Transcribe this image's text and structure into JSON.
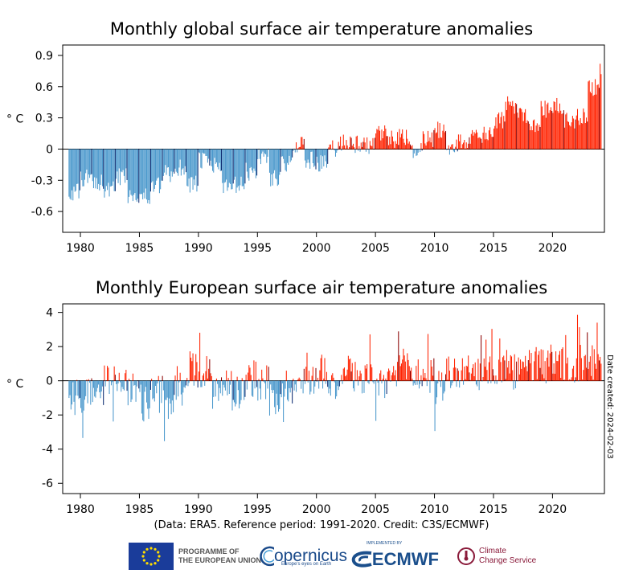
{
  "credit": "(Data: ERA5.  Reference period: 1991-2020.  Credit: C3S/ECMWF)",
  "date_created": "Date created: 2024-02-03",
  "logos": {
    "eu": [
      "PROGRAMME OF",
      "THE EUROPEAN UNION"
    ],
    "copernicus": "opernicus",
    "copernicus_tagline": "Europe's eyes on Earth",
    "ecmwf": "ECMWF",
    "ecmwf_tagline": "IMPLEMENTED BY",
    "c3s": [
      "Climate",
      "Change Service"
    ]
  },
  "colors": {
    "positive": "#ff2200",
    "negative": "#4a98cc",
    "december_negative": "#0c2a70",
    "december_positive": "#8b0000"
  },
  "chart_data": [
    {
      "type": "bar",
      "title": "Monthly global surface air temperature anomalies",
      "ylabel": "° C",
      "ylim": [
        -0.8,
        1.0
      ],
      "yticks": [
        -0.6,
        -0.3,
        0,
        0.3,
        0.6,
        0.9
      ],
      "ytick_labels": [
        "-0.6",
        "-0.3",
        "0",
        "0.3",
        "0.6",
        "0.9"
      ],
      "xlim": [
        1978.5,
        2024.4
      ],
      "xticks": [
        1980,
        1985,
        1990,
        1995,
        2000,
        2005,
        2010,
        2015,
        2020
      ],
      "start": "1979-01",
      "annual_means": [
        -0.42,
        -0.28,
        -0.31,
        -0.4,
        -0.27,
        -0.43,
        -0.46,
        -0.36,
        -0.24,
        -0.18,
        -0.33,
        -0.12,
        -0.16,
        -0.38,
        -0.35,
        -0.22,
        -0.07,
        -0.27,
        -0.15,
        0.05,
        -0.11,
        -0.14,
        0.0,
        0.07,
        0.05,
        0.03,
        0.14,
        0.09,
        0.11,
        -0.03,
        0.1,
        0.18,
        0.03,
        0.07,
        0.11,
        0.13,
        0.27,
        0.42,
        0.34,
        0.24,
        0.38,
        0.41,
        0.26,
        0.32,
        0.59
      ],
      "last_months": [
        0.82,
        0.72
      ]
    },
    {
      "type": "bar",
      "title": "Monthly European surface air temperature anomalies",
      "ylabel": "° C",
      "ylim": [
        -6.6,
        4.5
      ],
      "yticks": [
        -6,
        -4,
        -2,
        0,
        2,
        4
      ],
      "ytick_labels": [
        "-6",
        "-4",
        "-2",
        "0",
        "2",
        "4"
      ],
      "xlim": [
        1978.5,
        2024.4
      ],
      "xticks": [
        1980,
        1985,
        1990,
        1995,
        2000,
        2005,
        2010,
        2015,
        2020
      ],
      "start": "1979-01",
      "annual_means": [
        -1.0,
        -0.9,
        -0.5,
        -0.2,
        -0.1,
        -0.4,
        -1.3,
        -0.8,
        -1.5,
        -0.1,
        0.7,
        0.6,
        -0.5,
        -0.1,
        -0.6,
        0.1,
        -0.1,
        -0.9,
        -0.3,
        -0.3,
        0.2,
        0.6,
        -0.1,
        0.3,
        0.2,
        0.1,
        -0.2,
        0.3,
        0.8,
        0.4,
        0.2,
        -0.4,
        0.5,
        0.4,
        0.2,
        0.8,
        0.6,
        0.5,
        0.6,
        0.9,
        0.8,
        1.0,
        0.4,
        1.0,
        1.1
      ],
      "last_months": [
        1.4,
        1.0
      ]
    }
  ]
}
